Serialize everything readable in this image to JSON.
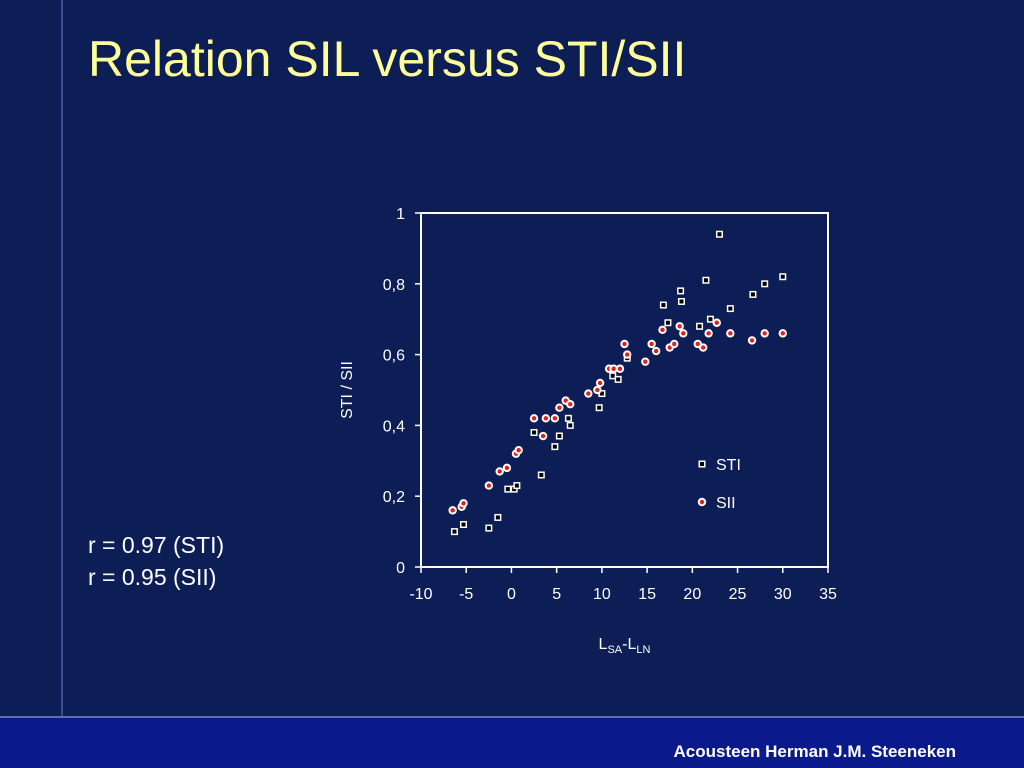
{
  "slide": {
    "title": "Relation SIL versus STI/SII",
    "annotations": [
      "r = 0.97 (STI)",
      "r = 0.95 (SII)"
    ],
    "footer": "Acousteen Herman J.M. Steeneken",
    "colors": {
      "background": "#0d1e56",
      "title": "#ffff99",
      "footer_bar": "#0a1a8c",
      "sii_marker": "#e0201c"
    }
  },
  "chart_data": {
    "type": "scatter",
    "title": "",
    "xlabel": {
      "main": "L",
      "sub1": "SA",
      "sep": "-L",
      "sub2": "LN"
    },
    "ylabel": "STI / SII",
    "xlim": [
      -10,
      35
    ],
    "ylim": [
      0,
      1
    ],
    "xticks": [
      "-10",
      "-5",
      "0",
      "5",
      "10",
      "15",
      "20",
      "25",
      "30",
      "35"
    ],
    "yticks": [
      "0",
      "0,2",
      "0,4",
      "0,6",
      "0,8",
      "1"
    ],
    "grid": false,
    "legend": "inside-right",
    "series": [
      {
        "name": "STI",
        "marker": "square",
        "x": [
          -6.3,
          -5.3,
          -2.5,
          -1.5,
          -0.4,
          0.3,
          0.6,
          2.5,
          3.3,
          4.8,
          5.3,
          6.3,
          6.5,
          9.7,
          10.0,
          11.2,
          11.8,
          12.8,
          16.8,
          17.3,
          18.7,
          18.8,
          20.8,
          21.5,
          22.0,
          23.0,
          24.2,
          26.7,
          28.0,
          30.0
        ],
        "y": [
          0.1,
          0.12,
          0.11,
          0.14,
          0.22,
          0.22,
          0.23,
          0.38,
          0.26,
          0.34,
          0.37,
          0.42,
          0.4,
          0.45,
          0.49,
          0.54,
          0.53,
          0.59,
          0.74,
          0.69,
          0.78,
          0.75,
          0.68,
          0.81,
          0.7,
          0.94,
          0.73,
          0.77,
          0.8,
          0.82
        ]
      },
      {
        "name": "SII",
        "marker": "circle",
        "x": [
          -6.5,
          -5.5,
          -5.3,
          -2.5,
          -1.3,
          -0.5,
          0.5,
          0.8,
          2.5,
          3.5,
          3.8,
          4.8,
          5.3,
          6.0,
          6.5,
          8.5,
          9.5,
          9.8,
          10.8,
          11.3,
          12.0,
          12.5,
          12.8,
          14.8,
          15.5,
          16.0,
          16.7,
          17.5,
          18.0,
          18.6,
          19.0,
          20.6,
          21.2,
          21.8,
          22.7,
          24.2,
          26.6,
          28.0,
          30.0
        ],
        "y": [
          0.16,
          0.17,
          0.18,
          0.23,
          0.27,
          0.28,
          0.32,
          0.33,
          0.42,
          0.37,
          0.42,
          0.42,
          0.45,
          0.47,
          0.46,
          0.49,
          0.5,
          0.52,
          0.56,
          0.56,
          0.56,
          0.63,
          0.6,
          0.58,
          0.63,
          0.61,
          0.67,
          0.62,
          0.63,
          0.68,
          0.66,
          0.63,
          0.62,
          0.66,
          0.69,
          0.66,
          0.64,
          0.66,
          0.66
        ]
      }
    ]
  }
}
